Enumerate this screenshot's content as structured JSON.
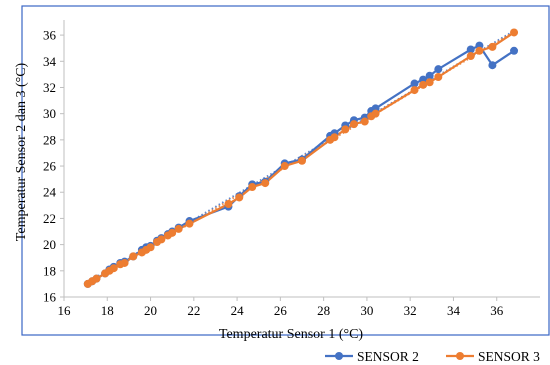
{
  "chart_data": {
    "type": "scatter",
    "title": "",
    "xlabel": "Temperatur Sensor 1 (°C)",
    "ylabel": "Temperatur Sensor 2 dan 3 (°C)",
    "xlim": [
      16,
      38
    ],
    "ylim": [
      16,
      37
    ],
    "x_ticks": [
      16,
      18,
      20,
      22,
      24,
      26,
      28,
      30,
      32,
      34,
      36
    ],
    "y_ticks": [
      16,
      18,
      20,
      22,
      24,
      26,
      28,
      30,
      32,
      34,
      36
    ],
    "grid": false,
    "legend_position": "bottom-right",
    "trendline": "linear, dotted, per series",
    "series": [
      {
        "name": "SENSOR 2",
        "color": "#4472C4",
        "x": [
          17.1,
          17.3,
          17.5,
          17.9,
          18.1,
          18.3,
          18.6,
          18.8,
          19.2,
          19.6,
          19.8,
          20.0,
          20.3,
          20.5,
          20.8,
          21.0,
          21.3,
          21.8,
          23.6,
          24.1,
          24.7,
          25.3,
          26.2,
          27.0,
          28.3,
          28.5,
          29.0,
          29.4,
          29.9,
          30.2,
          30.4,
          32.2,
          32.6,
          32.9,
          33.3,
          34.8,
          35.2,
          35.8,
          36.8
        ],
        "y": [
          17.0,
          17.2,
          17.4,
          17.8,
          18.1,
          18.3,
          18.6,
          18.7,
          19.1,
          19.6,
          19.8,
          19.9,
          20.3,
          20.5,
          20.8,
          21.0,
          21.3,
          21.8,
          22.9,
          23.7,
          24.6,
          24.8,
          26.2,
          26.5,
          28.3,
          28.5,
          29.1,
          29.5,
          29.7,
          30.2,
          30.4,
          32.3,
          32.6,
          32.9,
          33.4,
          34.9,
          35.2,
          33.7,
          34.8
        ]
      },
      {
        "name": "SENSOR 3",
        "color": "#ED7D31",
        "x": [
          17.1,
          17.3,
          17.5,
          17.9,
          18.1,
          18.3,
          18.6,
          18.8,
          19.2,
          19.6,
          19.8,
          20.0,
          20.3,
          20.5,
          20.8,
          21.0,
          21.3,
          21.8,
          23.6,
          24.1,
          24.7,
          25.3,
          26.2,
          27.0,
          28.3,
          28.5,
          29.0,
          29.4,
          29.9,
          30.2,
          30.4,
          32.2,
          32.6,
          32.9,
          33.3,
          34.8,
          35.2,
          35.8,
          36.8
        ],
        "y": [
          17.0,
          17.2,
          17.4,
          17.8,
          18.0,
          18.2,
          18.5,
          18.6,
          19.1,
          19.4,
          19.6,
          19.8,
          20.2,
          20.4,
          20.7,
          20.9,
          21.2,
          21.6,
          23.1,
          23.6,
          24.4,
          24.7,
          26.0,
          26.4,
          28.0,
          28.2,
          28.8,
          29.2,
          29.4,
          29.8,
          30.0,
          31.8,
          32.2,
          32.4,
          32.8,
          34.4,
          34.8,
          35.1,
          36.2
        ]
      }
    ]
  }
}
